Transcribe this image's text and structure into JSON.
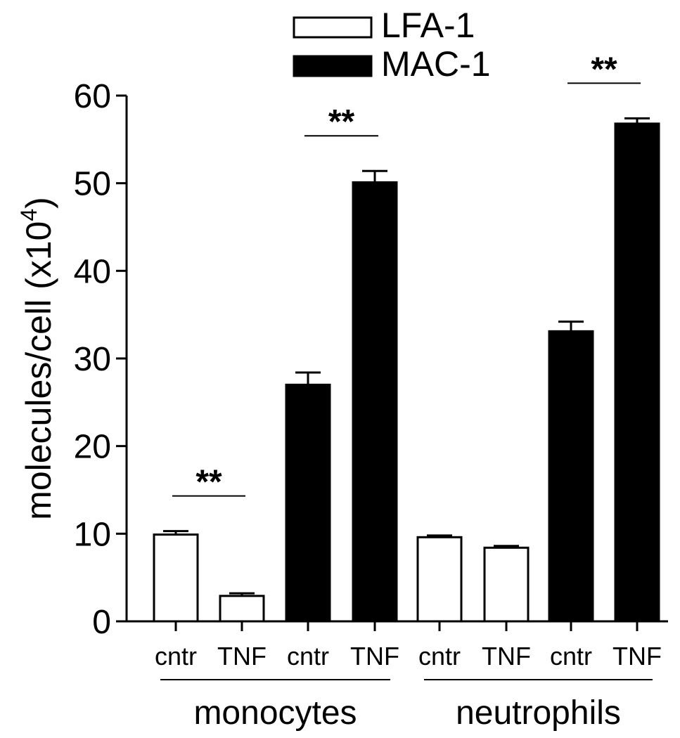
{
  "chart_data": {
    "type": "bar",
    "ylabel": "molecules/cell (x10",
    "ylabel_exponent": "4",
    "ylabel_close": ")",
    "ylim": [
      0,
      60
    ],
    "yticks": [
      "0",
      "10",
      "20",
      "30",
      "40",
      "50",
      "60"
    ],
    "legend": {
      "placement": "top-center",
      "entries": [
        {
          "label": "LFA-1",
          "fill": "#ffffff"
        },
        {
          "label": "MAC-1",
          "fill": "#000000"
        }
      ]
    },
    "categories": [
      "cntr",
      "TNF",
      "cntr",
      "TNF",
      "cntr",
      "TNF",
      "cntr",
      "TNF"
    ],
    "bars": [
      {
        "label": "cntr",
        "series": "LFA-1",
        "value": 9.9,
        "error": 0.4,
        "fill": "#ffffff"
      },
      {
        "label": "TNF",
        "series": "LFA-1",
        "value": 2.9,
        "error": 0.3,
        "fill": "#ffffff"
      },
      {
        "label": "cntr",
        "series": "MAC-1",
        "value": 27.0,
        "error": 1.4,
        "fill": "#000000"
      },
      {
        "label": "TNF",
        "series": "MAC-1",
        "value": 50.1,
        "error": 1.3,
        "fill": "#000000"
      },
      {
        "label": "cntr",
        "series": "LFA-1",
        "value": 9.6,
        "error": 0.2,
        "fill": "#ffffff"
      },
      {
        "label": "TNF",
        "series": "LFA-1",
        "value": 8.4,
        "error": 0.2,
        "fill": "#ffffff"
      },
      {
        "label": "cntr",
        "series": "MAC-1",
        "value": 33.1,
        "error": 1.1,
        "fill": "#000000"
      },
      {
        "label": "TNF",
        "series": "MAC-1",
        "value": 56.8,
        "error": 0.6,
        "fill": "#000000"
      }
    ],
    "groups": [
      {
        "label": "monocytes",
        "bar_indices": [
          0,
          1,
          2,
          3
        ]
      },
      {
        "label": "neutrophils",
        "bar_indices": [
          4,
          5,
          6,
          7
        ]
      }
    ],
    "significance": [
      {
        "label": "**",
        "bars": [
          0,
          1
        ]
      },
      {
        "label": "**",
        "bars": [
          2,
          3
        ]
      },
      {
        "label": "**",
        "bars": [
          6,
          7
        ]
      }
    ]
  }
}
